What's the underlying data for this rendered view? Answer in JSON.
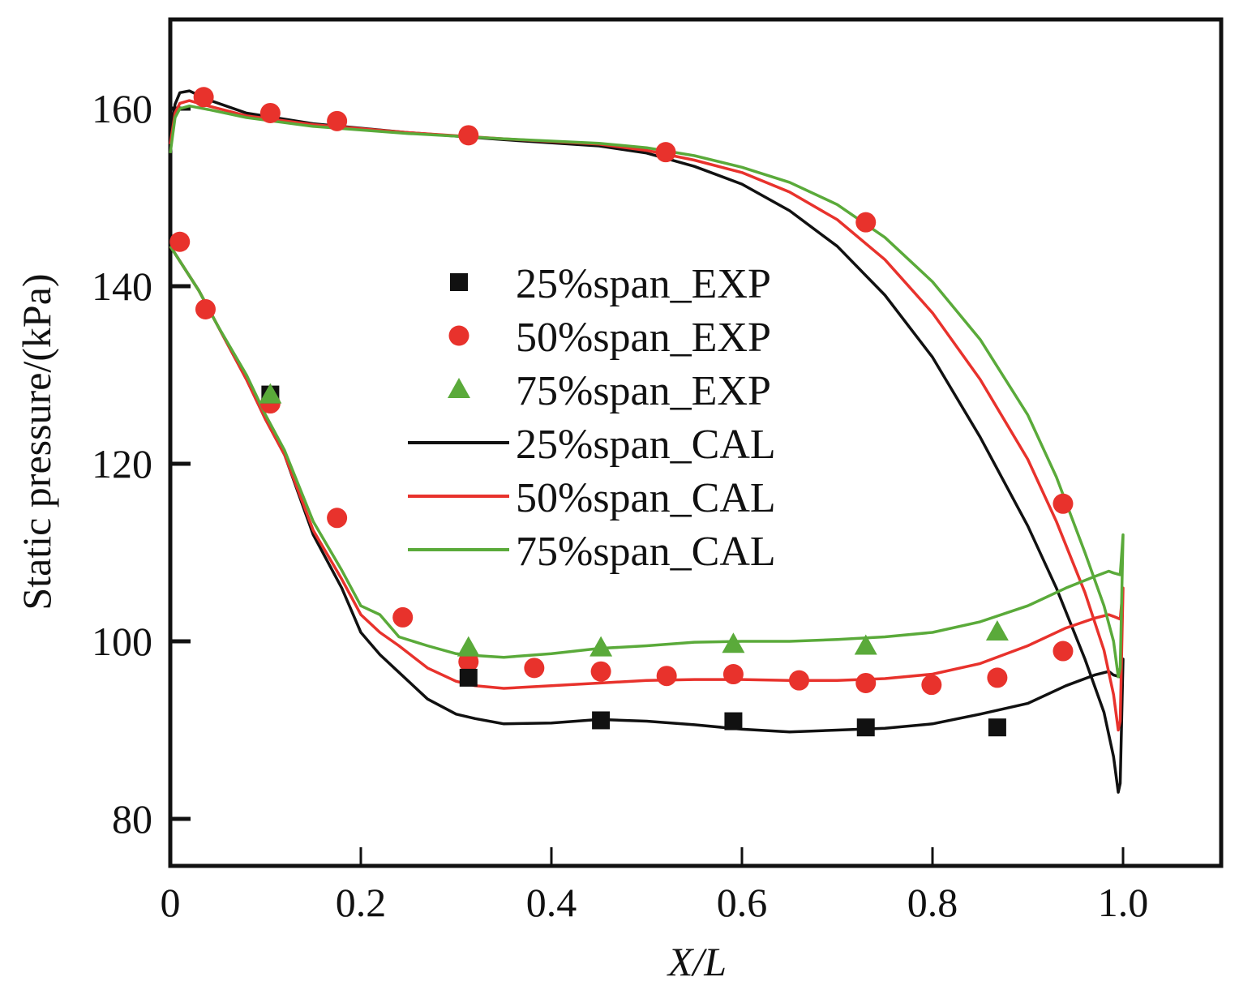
{
  "chart_data": {
    "type": "line",
    "title": "",
    "xlabel": "X/L",
    "ylabel": "Static pressure/(kPa)",
    "xlim": [
      0,
      1.1
    ],
    "ylim": [
      75,
      170
    ],
    "xticks": [
      0,
      0.2,
      0.4,
      0.6,
      0.8,
      1.0
    ],
    "xtick_labels": [
      "0",
      "0.2",
      "0.4",
      "0.6",
      "0.8",
      "1.0"
    ],
    "yticks": [
      80,
      100,
      120,
      140,
      160
    ],
    "ytick_labels": [
      "80",
      "100",
      "120",
      "140",
      "160"
    ],
    "grid": false,
    "legend_position": "center",
    "legend": [
      {
        "label": "25%span_EXP",
        "kind": "marker",
        "marker": "square",
        "color": "#111111"
      },
      {
        "label": "50%span_EXP",
        "kind": "marker",
        "marker": "circle",
        "color": "#e8322c"
      },
      {
        "label": "75%span_EXP",
        "kind": "marker",
        "marker": "triangle",
        "color": "#5aaa3a"
      },
      {
        "label": "25%span_CAL",
        "kind": "line",
        "color": "#111111"
      },
      {
        "label": "50%span_CAL",
        "kind": "line",
        "color": "#e8322c"
      },
      {
        "label": "75%span_CAL",
        "kind": "line",
        "color": "#5aaa3a"
      }
    ],
    "series": [
      {
        "name": "25%span_EXP",
        "kind": "scatter",
        "marker": "square",
        "color": "#111111",
        "x": [
          0.105,
          0.313,
          0.452,
          0.591,
          0.73,
          0.868
        ],
        "y": [
          127.8,
          95.9,
          91.1,
          91.0,
          90.3,
          90.3
        ]
      },
      {
        "name": "50%span_EXP",
        "kind": "scatter",
        "marker": "circle",
        "color": "#e8322c",
        "x": [
          0.035,
          0.105,
          0.175,
          0.313,
          0.52,
          0.73,
          0.937,
          0.01,
          0.037,
          0.105,
          0.175,
          0.244,
          0.313,
          0.382,
          0.452,
          0.521,
          0.591,
          0.66,
          0.73,
          0.799,
          0.868,
          0.937
        ],
        "y": [
          161.3,
          159.5,
          158.6,
          157.0,
          155.1,
          147.2,
          115.5,
          145.0,
          137.4,
          126.8,
          113.9,
          102.7,
          97.7,
          97.0,
          96.6,
          96.1,
          96.3,
          95.6,
          95.3,
          95.1,
          95.9,
          98.9
        ]
      },
      {
        "name": "75%span_EXP",
        "kind": "scatter",
        "marker": "triangle",
        "color": "#5aaa3a",
        "x": [
          0.105,
          0.313,
          0.452,
          0.591,
          0.73,
          0.868
        ],
        "y": [
          127.8,
          99.3,
          99.3,
          99.7,
          99.5,
          101.1
        ]
      },
      {
        "name": "25%span_CAL",
        "kind": "line",
        "color": "#111111",
        "x": [
          0.0,
          0.005,
          0.01,
          0.02,
          0.04,
          0.08,
          0.15,
          0.25,
          0.35,
          0.45,
          0.5,
          0.55,
          0.6,
          0.65,
          0.7,
          0.75,
          0.8,
          0.85,
          0.9,
          0.93,
          0.96,
          0.98,
          0.99,
          0.995,
          0.997,
          1.0,
          0.997,
          0.99,
          0.985,
          0.97,
          0.94,
          0.9,
          0.85,
          0.8,
          0.75,
          0.7,
          0.65,
          0.6,
          0.55,
          0.5,
          0.45,
          0.4,
          0.35,
          0.32,
          0.3,
          0.27,
          0.24,
          0.22,
          0.2,
          0.18,
          0.15,
          0.12,
          0.1,
          0.08,
          0.05,
          0.03,
          0.0
        ],
        "y": [
          157,
          160.5,
          161.8,
          162.0,
          161.0,
          159.5,
          158.3,
          157.3,
          156.5,
          155.8,
          155.0,
          153.5,
          151.5,
          148.5,
          144.5,
          139.0,
          132.0,
          123.0,
          113.0,
          106.0,
          98.0,
          92.0,
          87.0,
          83.0,
          84.0,
          98.0,
          96.0,
          96.2,
          96.6,
          96.2,
          95.0,
          93.0,
          91.8,
          90.7,
          90.2,
          90.0,
          89.8,
          90.1,
          90.6,
          91.0,
          91.2,
          90.8,
          90.7,
          91.3,
          91.8,
          93.5,
          96.5,
          98.5,
          101.0,
          106.0,
          112.0,
          121.0,
          125.0,
          129.5,
          135.5,
          139.5,
          144.5
        ]
      },
      {
        "name": "50%span_CAL",
        "kind": "line",
        "color": "#e8322c",
        "x": [
          0.0,
          0.005,
          0.01,
          0.02,
          0.04,
          0.08,
          0.15,
          0.25,
          0.35,
          0.45,
          0.5,
          0.55,
          0.6,
          0.65,
          0.7,
          0.75,
          0.8,
          0.85,
          0.9,
          0.93,
          0.96,
          0.98,
          0.99,
          0.995,
          0.997,
          1.0,
          0.997,
          0.99,
          0.985,
          0.97,
          0.94,
          0.9,
          0.85,
          0.8,
          0.75,
          0.7,
          0.65,
          0.6,
          0.55,
          0.5,
          0.45,
          0.4,
          0.35,
          0.32,
          0.3,
          0.27,
          0.24,
          0.22,
          0.2,
          0.18,
          0.15,
          0.12,
          0.1,
          0.08,
          0.05,
          0.03,
          0.0
        ],
        "y": [
          156,
          159.5,
          160.6,
          160.9,
          160.3,
          159.2,
          158.2,
          157.3,
          156.6,
          156.0,
          155.3,
          154.2,
          152.8,
          150.6,
          147.5,
          143.0,
          137.0,
          129.5,
          120.5,
          113.5,
          105.5,
          99.0,
          94.0,
          90.0,
          91.0,
          106.0,
          102.5,
          102.8,
          103.0,
          102.6,
          101.5,
          99.5,
          97.5,
          96.3,
          95.8,
          95.6,
          95.6,
          95.7,
          95.7,
          95.6,
          95.3,
          95.0,
          94.7,
          95.0,
          95.5,
          97.0,
          99.5,
          101.0,
          103.0,
          107.0,
          112.5,
          121.0,
          125.0,
          129.5,
          135.5,
          139.5,
          144.5
        ]
      },
      {
        "name": "75%span_CAL",
        "kind": "line",
        "color": "#5aaa3a",
        "x": [
          0.0,
          0.005,
          0.01,
          0.02,
          0.04,
          0.08,
          0.15,
          0.25,
          0.35,
          0.45,
          0.5,
          0.55,
          0.6,
          0.65,
          0.7,
          0.75,
          0.8,
          0.85,
          0.9,
          0.93,
          0.96,
          0.98,
          0.99,
          0.995,
          0.997,
          1.0,
          0.997,
          0.99,
          0.985,
          0.97,
          0.94,
          0.9,
          0.85,
          0.8,
          0.75,
          0.7,
          0.65,
          0.6,
          0.55,
          0.5,
          0.45,
          0.4,
          0.35,
          0.32,
          0.3,
          0.27,
          0.24,
          0.22,
          0.2,
          0.18,
          0.15,
          0.12,
          0.1,
          0.08,
          0.05,
          0.03,
          0.0
        ],
        "y": [
          155,
          159.0,
          160.0,
          160.3,
          159.9,
          159.0,
          158.0,
          157.2,
          156.6,
          156.1,
          155.6,
          154.7,
          153.4,
          151.7,
          149.2,
          145.5,
          140.5,
          134.0,
          125.5,
          118.5,
          110.0,
          104.0,
          100.0,
          96.0,
          97.0,
          112.0,
          107.5,
          107.7,
          107.9,
          107.3,
          106.0,
          104.0,
          102.2,
          101.0,
          100.5,
          100.2,
          100.0,
          100.0,
          99.9,
          99.5,
          99.2,
          98.6,
          98.2,
          98.4,
          98.6,
          99.5,
          100.5,
          103.0,
          104.0,
          108.0,
          113.5,
          121.5,
          125.5,
          130.0,
          135.5,
          139.5,
          144.5
        ]
      }
    ]
  }
}
